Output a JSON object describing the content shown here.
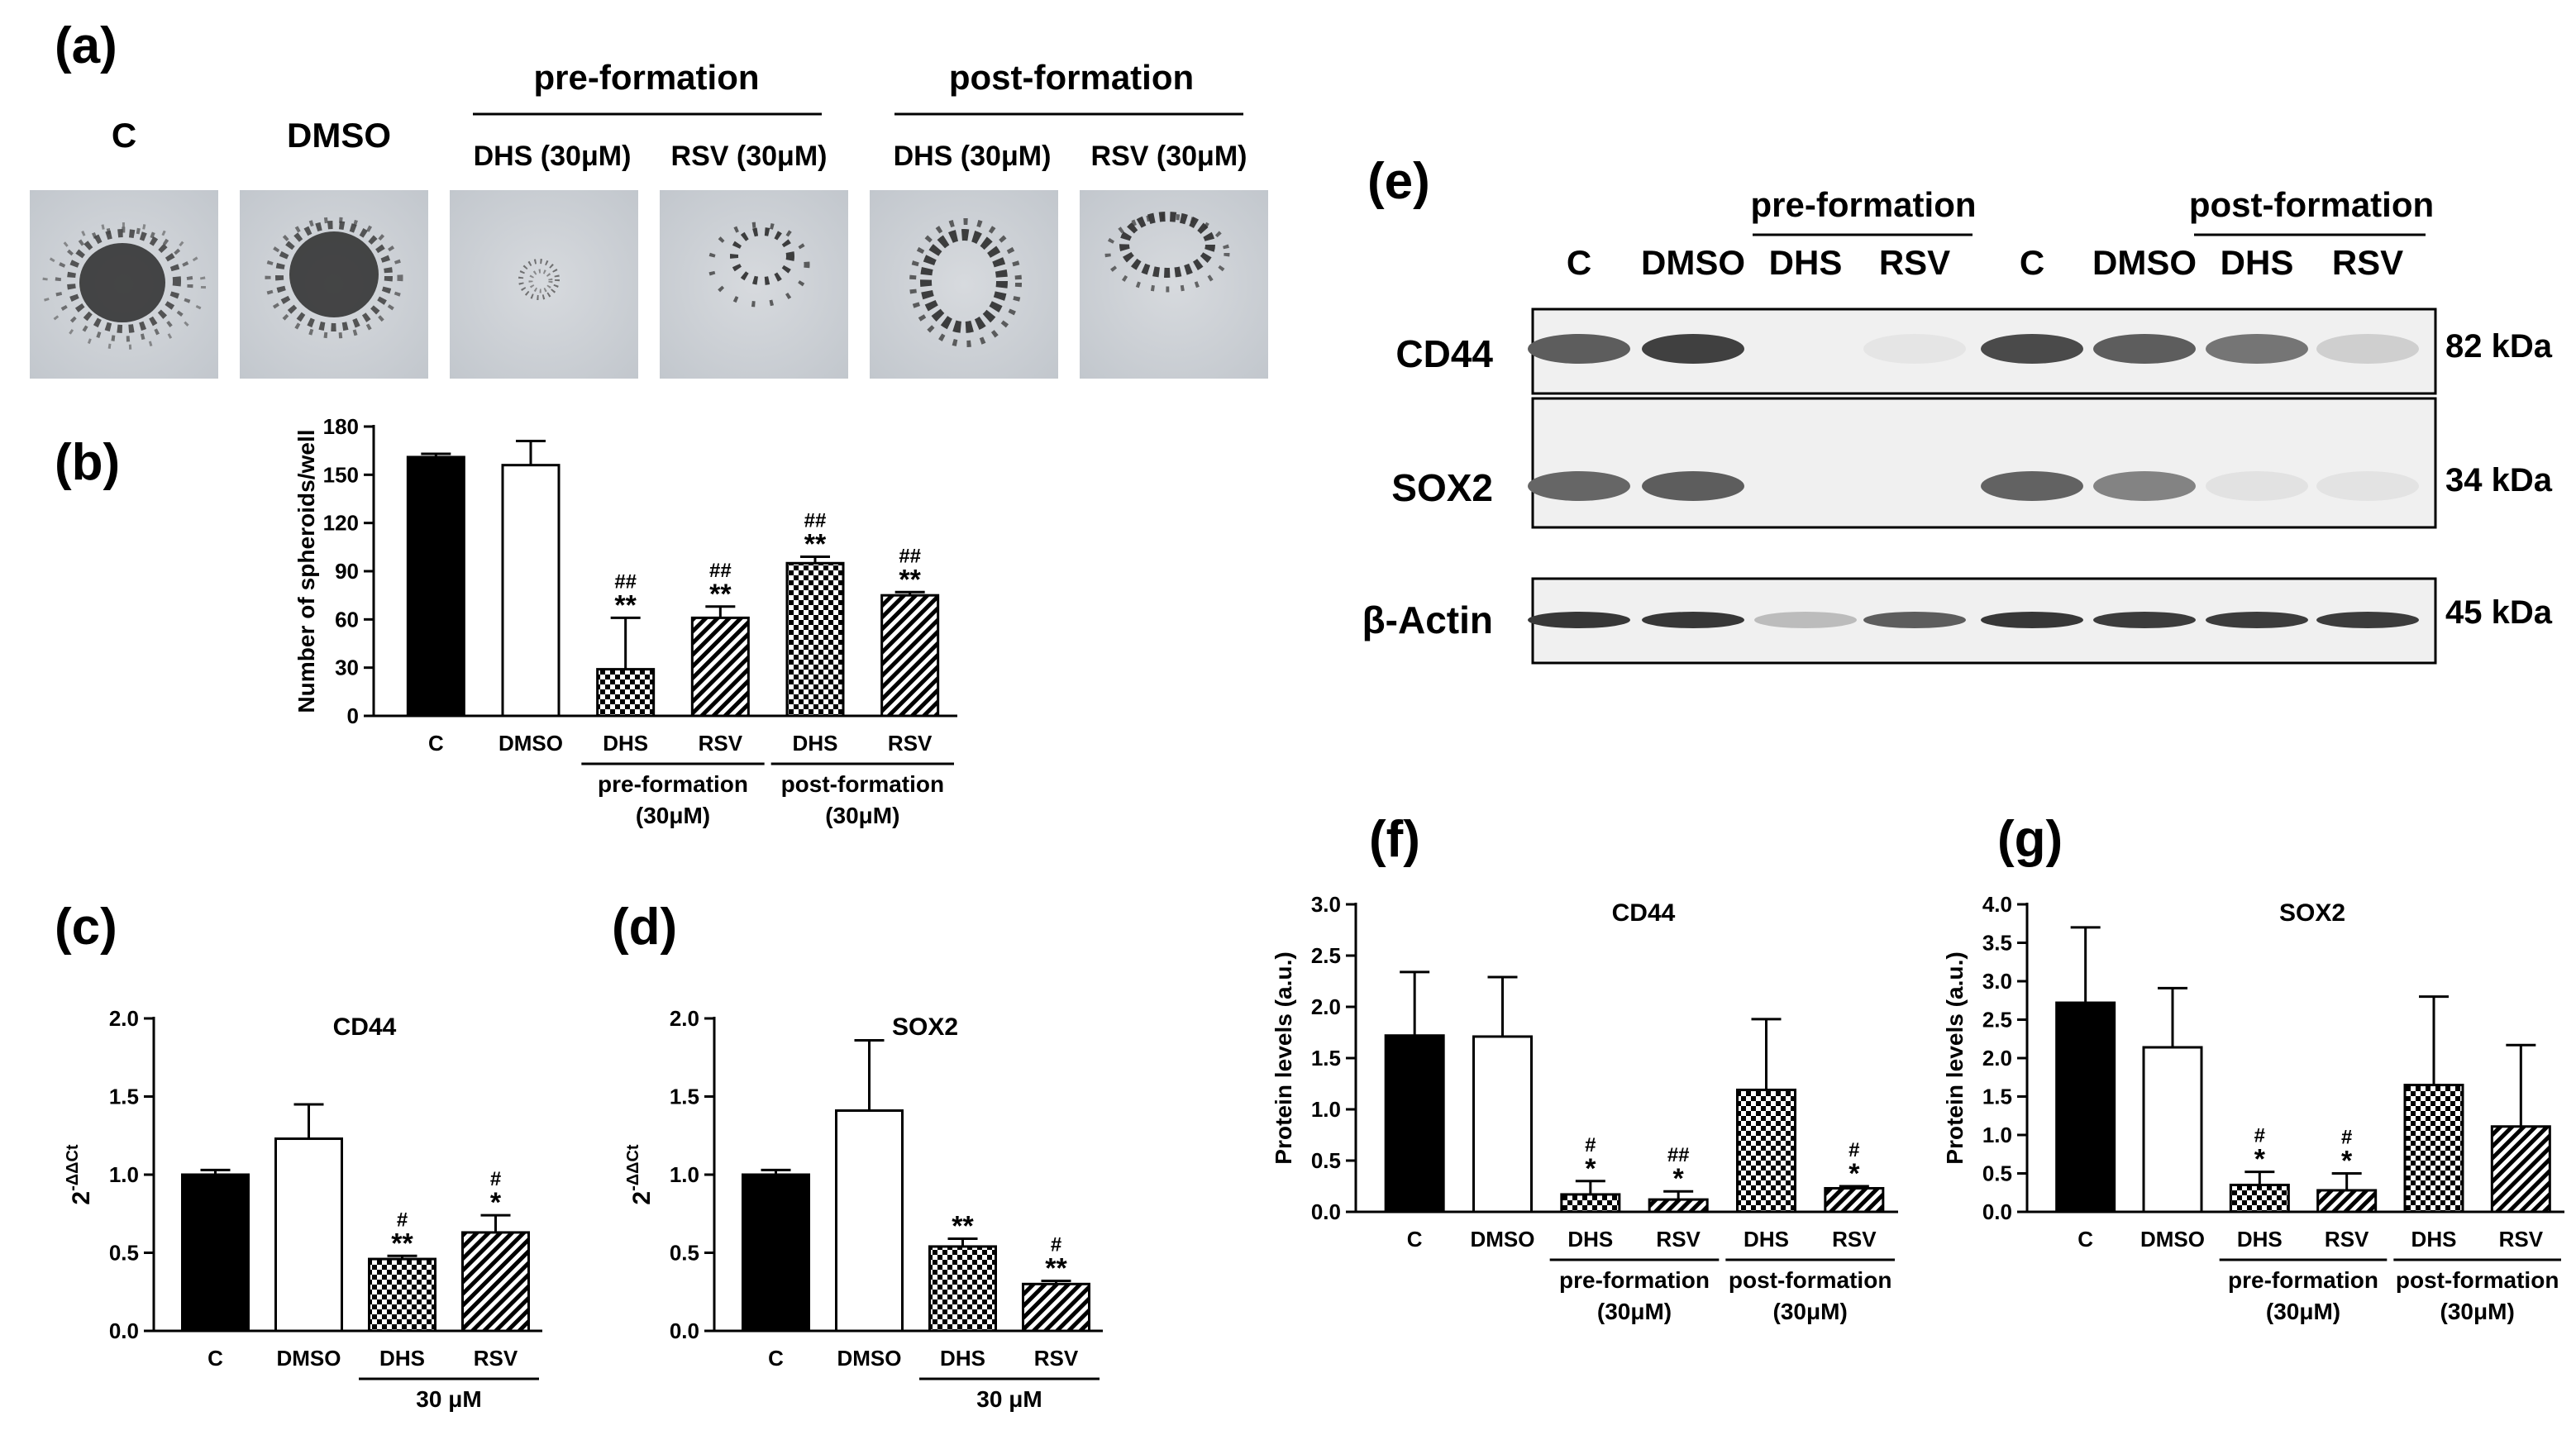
{
  "panel_labels": [
    "(a)",
    "(b)",
    "(c)",
    "(d)",
    "(e)",
    "(f)",
    "(g)"
  ],
  "panel_a": {
    "col_labels": [
      "C",
      "DMSO",
      "DHS (30μM)",
      "RSV (30μM)",
      "DHS (30μM)",
      "RSV (30μM)"
    ],
    "group_labels": [
      "pre-formation",
      "post-formation"
    ]
  },
  "panel_e": {
    "group_labels": [
      "pre-formation",
      "post-formation"
    ],
    "lane_labels": [
      "C",
      "DMSO",
      "DHS",
      "RSV",
      "C",
      "DMSO",
      "DHS",
      "RSV"
    ],
    "rows": [
      {
        "label": "CD44",
        "kda": "82 kDa",
        "intensity": [
          0.75,
          0.9,
          0.0,
          0.03,
          0.85,
          0.75,
          0.62,
          0.15
        ]
      },
      {
        "label": "SOX2",
        "kda": "34 kDa",
        "intensity": [
          0.7,
          0.75,
          0.0,
          0.0,
          0.72,
          0.55,
          0.05,
          0.04
        ]
      },
      {
        "label": "β-Actin",
        "kda": "45 kDa",
        "intensity": [
          0.95,
          0.95,
          0.25,
          0.75,
          0.95,
          0.92,
          0.92,
          0.92
        ]
      }
    ]
  },
  "colors": {
    "bar_fill_solid": "#000000",
    "bar_fill_open": "#ffffff",
    "blot_background": "#f0f0f0"
  },
  "chart_data": [
    {
      "panel": "(b)",
      "type": "bar",
      "categories": [
        "C",
        "DMSO",
        "DHS",
        "RSV",
        "DHS",
        "RSV"
      ],
      "values": [
        161,
        156,
        29,
        61,
        95,
        75
      ],
      "errors": [
        2,
        15,
        32,
        7,
        4,
        2
      ],
      "fills": [
        "solid",
        "open",
        "checker",
        "hatch",
        "checker",
        "hatch"
      ],
      "sig_star": [
        "",
        "",
        "**",
        "**",
        "**",
        "**"
      ],
      "sig_hash": [
        "",
        "",
        "##",
        "##",
        "##",
        "##"
      ],
      "ylabel": "Number of spheroids/well",
      "ylim": [
        0,
        180
      ],
      "yticks": [
        0,
        30,
        60,
        90,
        120,
        150,
        180
      ],
      "groups": [
        {
          "label1": "pre-formation",
          "label2": "(30μM)",
          "from": 2,
          "to": 3
        },
        {
          "label1": "post-formation",
          "label2": "(30μM)",
          "from": 4,
          "to": 5
        }
      ]
    },
    {
      "panel": "(c)",
      "type": "bar",
      "title": "CD44",
      "categories": [
        "C",
        "DMSO",
        "DHS",
        "RSV"
      ],
      "values": [
        1.0,
        1.23,
        0.46,
        0.63
      ],
      "errors": [
        0.03,
        0.22,
        0.02,
        0.11
      ],
      "fills": [
        "solid",
        "open",
        "checker",
        "hatch"
      ],
      "sig_star": [
        "",
        "",
        "**",
        "*"
      ],
      "sig_hash": [
        "",
        "",
        "#",
        "#"
      ],
      "ylabel": "2-ΔΔCt",
      "ylim": [
        0,
        2.0
      ],
      "yticks": [
        "0.0",
        "0.5",
        "1.0",
        "1.5",
        "2.0"
      ],
      "groups": [
        {
          "label1": "30 μM",
          "label2": "",
          "from": 2,
          "to": 3
        }
      ]
    },
    {
      "panel": "(d)",
      "type": "bar",
      "title": "SOX2",
      "categories": [
        "C",
        "DMSO",
        "DHS",
        "RSV"
      ],
      "values": [
        1.0,
        1.41,
        0.54,
        0.3
      ],
      "errors": [
        0.03,
        0.45,
        0.05,
        0.02
      ],
      "fills": [
        "solid",
        "open",
        "checker",
        "hatch"
      ],
      "sig_star": [
        "",
        "",
        "**",
        "**"
      ],
      "sig_hash": [
        "",
        "",
        "",
        "#"
      ],
      "ylabel": "2-ΔΔCt",
      "ylim": [
        0,
        2.0
      ],
      "yticks": [
        "0.0",
        "0.5",
        "1.0",
        "1.5",
        "2.0"
      ],
      "groups": [
        {
          "label1": "30 μM",
          "label2": "",
          "from": 2,
          "to": 3
        }
      ]
    },
    {
      "panel": "(f)",
      "type": "bar",
      "title": "CD44",
      "categories": [
        "C",
        "DMSO",
        "DHS",
        "RSV",
        "DHS",
        "RSV"
      ],
      "values": [
        1.72,
        1.71,
        0.17,
        0.12,
        1.19,
        0.23
      ],
      "errors": [
        0.62,
        0.58,
        0.13,
        0.08,
        0.69,
        0.02
      ],
      "fills": [
        "solid",
        "open",
        "checker",
        "hatch",
        "checker",
        "hatch"
      ],
      "sig_star": [
        "",
        "",
        "*",
        "*",
        "",
        "*"
      ],
      "sig_hash": [
        "",
        "",
        "#",
        "##",
        "",
        "#"
      ],
      "ylabel": "Protein levels (a.u.)",
      "ylim": [
        0,
        3.0
      ],
      "yticks": [
        "0.0",
        "0.5",
        "1.0",
        "1.5",
        "2.0",
        "2.5",
        "3.0"
      ],
      "groups": [
        {
          "label1": "pre-formation",
          "label2": "(30μM)",
          "from": 2,
          "to": 3
        },
        {
          "label1": "post-formation",
          "label2": "(30μM)",
          "from": 4,
          "to": 5
        }
      ]
    },
    {
      "panel": "(g)",
      "type": "bar",
      "title": "SOX2",
      "categories": [
        "C",
        "DMSO",
        "DHS",
        "RSV",
        "DHS",
        "RSV"
      ],
      "values": [
        2.72,
        2.14,
        0.35,
        0.28,
        1.65,
        1.11
      ],
      "errors": [
        0.98,
        0.77,
        0.17,
        0.22,
        1.15,
        1.06
      ],
      "fills": [
        "solid",
        "open",
        "checker",
        "hatch",
        "checker",
        "hatch"
      ],
      "sig_star": [
        "",
        "",
        "*",
        "*",
        "",
        ""
      ],
      "sig_hash": [
        "",
        "",
        "#",
        "#",
        "",
        ""
      ],
      "ylabel": "Protein levels (a.u.)",
      "ylim": [
        0,
        4.0
      ],
      "yticks": [
        "0.0",
        "0.5",
        "1.0",
        "1.5",
        "2.0",
        "2.5",
        "3.0",
        "3.5",
        "4.0"
      ],
      "groups": [
        {
          "label1": "pre-formation",
          "label2": "(30μM)",
          "from": 2,
          "to": 3
        },
        {
          "label1": "post-formation",
          "label2": "(30μM)",
          "from": 4,
          "to": 5
        }
      ]
    }
  ]
}
